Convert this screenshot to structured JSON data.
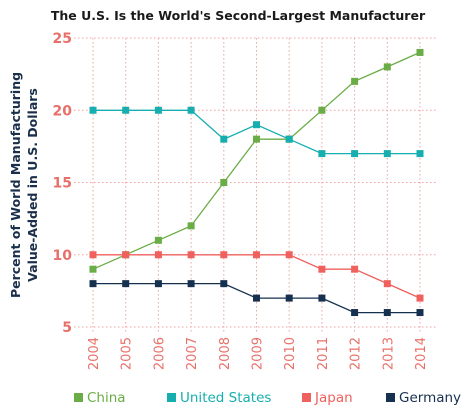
{
  "chart_data": {
    "type": "line",
    "title": "The U.S. Is the World's Second-Largest Manufacturer",
    "xlabel": "",
    "ylabel": "Percent of World Manufacturing Value-Added in U.S. Dollars",
    "ylabel_lines": [
      "Percent of World Manufacturing",
      "Value-Added in U.S. Dollars"
    ],
    "x": [
      "2004",
      "2005",
      "2006",
      "2007",
      "2008",
      "2009",
      "2010",
      "2011",
      "2012",
      "2013",
      "2014"
    ],
    "ylim": [
      5,
      25
    ],
    "yticks": [
      "5",
      "10",
      "15",
      "20",
      "25"
    ],
    "grid": true,
    "legend_position": "bottom",
    "series": [
      {
        "name": "China",
        "color": "#6aac46",
        "values": [
          9,
          10,
          11,
          12,
          15,
          18,
          18,
          20,
          22,
          23,
          24
        ]
      },
      {
        "name": "United States",
        "color": "#17aeb0",
        "values": [
          20,
          20,
          20,
          20,
          18,
          19,
          18,
          17,
          17,
          17,
          17
        ]
      },
      {
        "name": "Japan",
        "color": "#f0605d",
        "values": [
          10,
          10,
          10,
          10,
          10,
          10,
          10,
          9,
          9,
          8,
          7
        ]
      },
      {
        "name": "Germany",
        "color": "#16304f",
        "values": [
          8,
          8,
          8,
          8,
          8,
          7,
          7,
          7,
          6,
          6,
          6
        ]
      }
    ],
    "colors": {
      "tick_text": "#e8706a",
      "grid": "#f0a29e",
      "axis_label": "#1a2f4a",
      "title": "#1a1a1a"
    }
  }
}
